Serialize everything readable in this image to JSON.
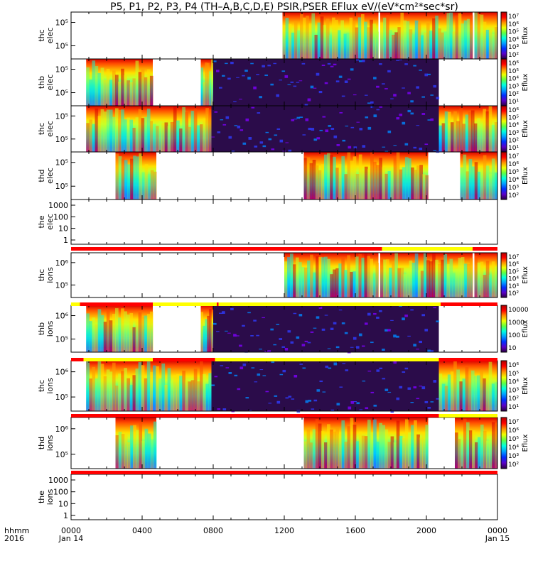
{
  "title": "P5, P1, P2, P3, P4 (TH–A,B,C,D,E) PSIR,PSER EFlux eV/(eV*cm²*sec*sr)",
  "footer": {
    "time_label": "hhmm",
    "year_label": "2016"
  },
  "x_ticks": [
    "0000",
    "0400",
    "0800",
    "1200",
    "1600",
    "2000",
    "0000"
  ],
  "x_dates": {
    "start": "Jan 14",
    "end": "Jan 15"
  },
  "colorbar_label": "Eflux",
  "chart_data": {
    "type": "heatmap",
    "x_range_hours": [
      0,
      24
    ],
    "panels": [
      {
        "probe_label": "thc",
        "species_label": "elec",
        "y_ticks": [
          "10⁵",
          "10⁵"
        ],
        "cbar_ticks": [
          "10⁷",
          "10⁶",
          "10⁵",
          "10⁴",
          "10³",
          "10²"
        ],
        "has_cbar": true,
        "data_segments": [
          [
            11.9,
            17.3
          ],
          [
            17.4,
            22.6
          ],
          [
            22.7,
            24
          ]
        ]
      },
      {
        "probe_label": "thb",
        "species_label": "elec",
        "y_ticks": [
          "10⁵",
          "10⁵"
        ],
        "cbar_ticks": [
          "10⁶",
          "10⁵",
          "10⁴",
          "10³",
          "10²",
          "10¹"
        ],
        "has_cbar": true,
        "data_segments": [
          [
            0.85,
            4.6
          ],
          [
            7.3,
            8.0
          ],
          [
            8.0,
            20.7
          ]
        ]
      },
      {
        "probe_label": "thc",
        "species_label": "elec",
        "y_ticks": [
          "10⁵",
          "10⁵"
        ],
        "cbar_ticks": [
          "10⁶",
          "10⁵",
          "10⁴",
          "10³",
          "10²",
          "10¹"
        ],
        "has_cbar": true,
        "data_segments": [
          [
            0.85,
            4.6
          ],
          [
            4.6,
            7.9
          ],
          [
            7.9,
            20.7
          ],
          [
            20.7,
            24
          ]
        ]
      },
      {
        "probe_label": "thd",
        "species_label": "elec",
        "y_ticks": [
          "10⁵",
          "10⁵"
        ],
        "cbar_ticks": [
          "10⁷",
          "10⁶",
          "10⁵",
          "10⁴",
          "10³",
          "10²"
        ],
        "has_cbar": true,
        "data_segments": [
          [
            2.5,
            4.8
          ],
          [
            13.1,
            20.1
          ],
          [
            21.9,
            24
          ]
        ]
      },
      {
        "probe_label": "the",
        "species_label": "elec",
        "y_ticks": [
          "1000",
          "100",
          "10",
          "1"
        ],
        "cbar_ticks": [],
        "has_cbar": false,
        "data_segments": []
      },
      {
        "probe_label": "thc",
        "species_label": "ions",
        "y_ticks": [
          "10⁶",
          "10⁵"
        ],
        "cbar_ticks": [
          "10⁷",
          "10⁶",
          "10⁵",
          "10⁴",
          "10³",
          "10²"
        ],
        "has_cbar": true,
        "data_segments": [
          [
            12.0,
            17.3
          ],
          [
            17.4,
            22.6
          ],
          [
            22.7,
            24
          ]
        ]
      },
      {
        "probe_label": "thb",
        "species_label": "ions",
        "y_ticks": [
          "10⁶",
          "10⁵"
        ],
        "cbar_ticks": [
          "10000",
          "1000",
          "100",
          "10"
        ],
        "has_cbar": true,
        "data_segments": [
          [
            0.85,
            4.6
          ],
          [
            7.3,
            8.0
          ],
          [
            8.0,
            20.7
          ]
        ]
      },
      {
        "probe_label": "thc",
        "species_label": "ions",
        "y_ticks": [
          "10⁶",
          "10⁵"
        ],
        "cbar_ticks": [
          "10⁶",
          "10⁵",
          "10⁴",
          "10³",
          "10²",
          "10¹"
        ],
        "has_cbar": true,
        "data_segments": [
          [
            0.85,
            4.6
          ],
          [
            4.6,
            7.9
          ],
          [
            7.9,
            20.7
          ],
          [
            20.7,
            24
          ]
        ]
      },
      {
        "probe_label": "thd",
        "species_label": "ions",
        "y_ticks": [
          "10⁶",
          "10⁵"
        ],
        "cbar_ticks": [
          "10⁷",
          "10⁶",
          "10⁵",
          "10⁴",
          "10³",
          "10²"
        ],
        "has_cbar": true,
        "data_segments": [
          [
            2.5,
            4.8
          ],
          [
            13.1,
            20.1
          ],
          [
            21.6,
            24
          ]
        ]
      },
      {
        "probe_label": "the",
        "species_label": "ions",
        "y_ticks": [
          "1000",
          "100",
          "10",
          "1"
        ],
        "cbar_ticks": [],
        "has_cbar": false,
        "data_segments": []
      }
    ],
    "mode_bars": [
      {
        "after_panel": 4,
        "segments": [
          [
            "#ff0000",
            0,
            17.5
          ],
          [
            "#ffff00",
            17.5,
            22.6
          ],
          [
            "#ff0000",
            22.6,
            24
          ]
        ]
      },
      {
        "after_panel": 5,
        "segments": [
          [
            "#ff0000",
            0.5,
            4.6
          ],
          [
            "#ffff00",
            0.0,
            0.5
          ],
          [
            "#ffff00",
            4.6,
            8.2
          ],
          [
            "#ff0000",
            8.2,
            8.3
          ],
          [
            "#ffff00",
            8.3,
            20.8
          ],
          [
            "#ff0000",
            20.8,
            24
          ]
        ]
      },
      {
        "after_panel": 6,
        "segments": [
          [
            "#ff0000",
            0,
            0.7
          ],
          [
            "#ffff00",
            0.7,
            4.6
          ],
          [
            "#ff0000",
            4.6,
            8.1
          ],
          [
            "#ffff00",
            8.1,
            20.7
          ],
          [
            "#ff0000",
            20.7,
            24
          ]
        ]
      },
      {
        "after_panel": 7,
        "segments": [
          [
            "#ff0000",
            0,
            20.7
          ],
          [
            "#ffff00",
            20.7,
            24
          ]
        ]
      },
      {
        "after_panel": 8,
        "segments": [
          [
            "#ff0000",
            0,
            24
          ]
        ]
      }
    ]
  }
}
